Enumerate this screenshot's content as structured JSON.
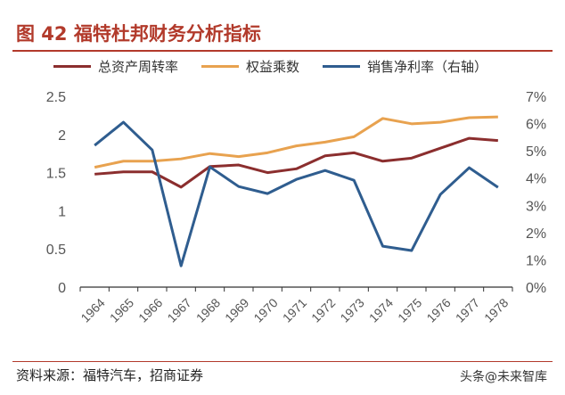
{
  "title": "图 42 福特杜邦财务分析指标",
  "source": "资料来源：福特汽车，招商证券",
  "watermark": "头条@未来智库",
  "chart_data": {
    "type": "line",
    "categories": [
      "1964",
      "1965",
      "1966",
      "1967",
      "1968",
      "1969",
      "1970",
      "1971",
      "1972",
      "1973",
      "1974",
      "1975",
      "1976",
      "1977",
      "1978"
    ],
    "y_left": {
      "range": [
        0,
        2.5
      ],
      "ticks": [
        "0",
        "0.5",
        "1",
        "1.5",
        "2",
        "2.5"
      ]
    },
    "y_right": {
      "range": [
        0,
        7
      ],
      "ticks": [
        "0%",
        "1%",
        "2%",
        "3%",
        "4%",
        "5%",
        "6%",
        "7%"
      ]
    },
    "legend_position": "top",
    "grid": false,
    "series": [
      {
        "name": "总资产周转率",
        "color": "#8b2e2e",
        "axis": "left",
        "values": [
          1.48,
          1.51,
          1.51,
          1.31,
          1.58,
          1.6,
          1.5,
          1.55,
          1.72,
          1.76,
          1.65,
          1.69,
          1.82,
          1.95,
          1.92
        ]
      },
      {
        "name": "权益乘数",
        "color": "#e8a24f",
        "axis": "left",
        "values": [
          1.57,
          1.65,
          1.65,
          1.68,
          1.75,
          1.71,
          1.76,
          1.85,
          1.9,
          1.97,
          2.21,
          2.14,
          2.16,
          2.22,
          2.23
        ]
      },
      {
        "name": "销售净利率（右轴）",
        "color": "#2f5d8f",
        "axis": "right",
        "values": [
          5.2,
          6.05,
          5.03,
          0.78,
          4.41,
          3.69,
          3.43,
          3.95,
          4.28,
          3.92,
          1.5,
          1.34,
          3.4,
          4.38,
          3.66
        ]
      }
    ]
  }
}
